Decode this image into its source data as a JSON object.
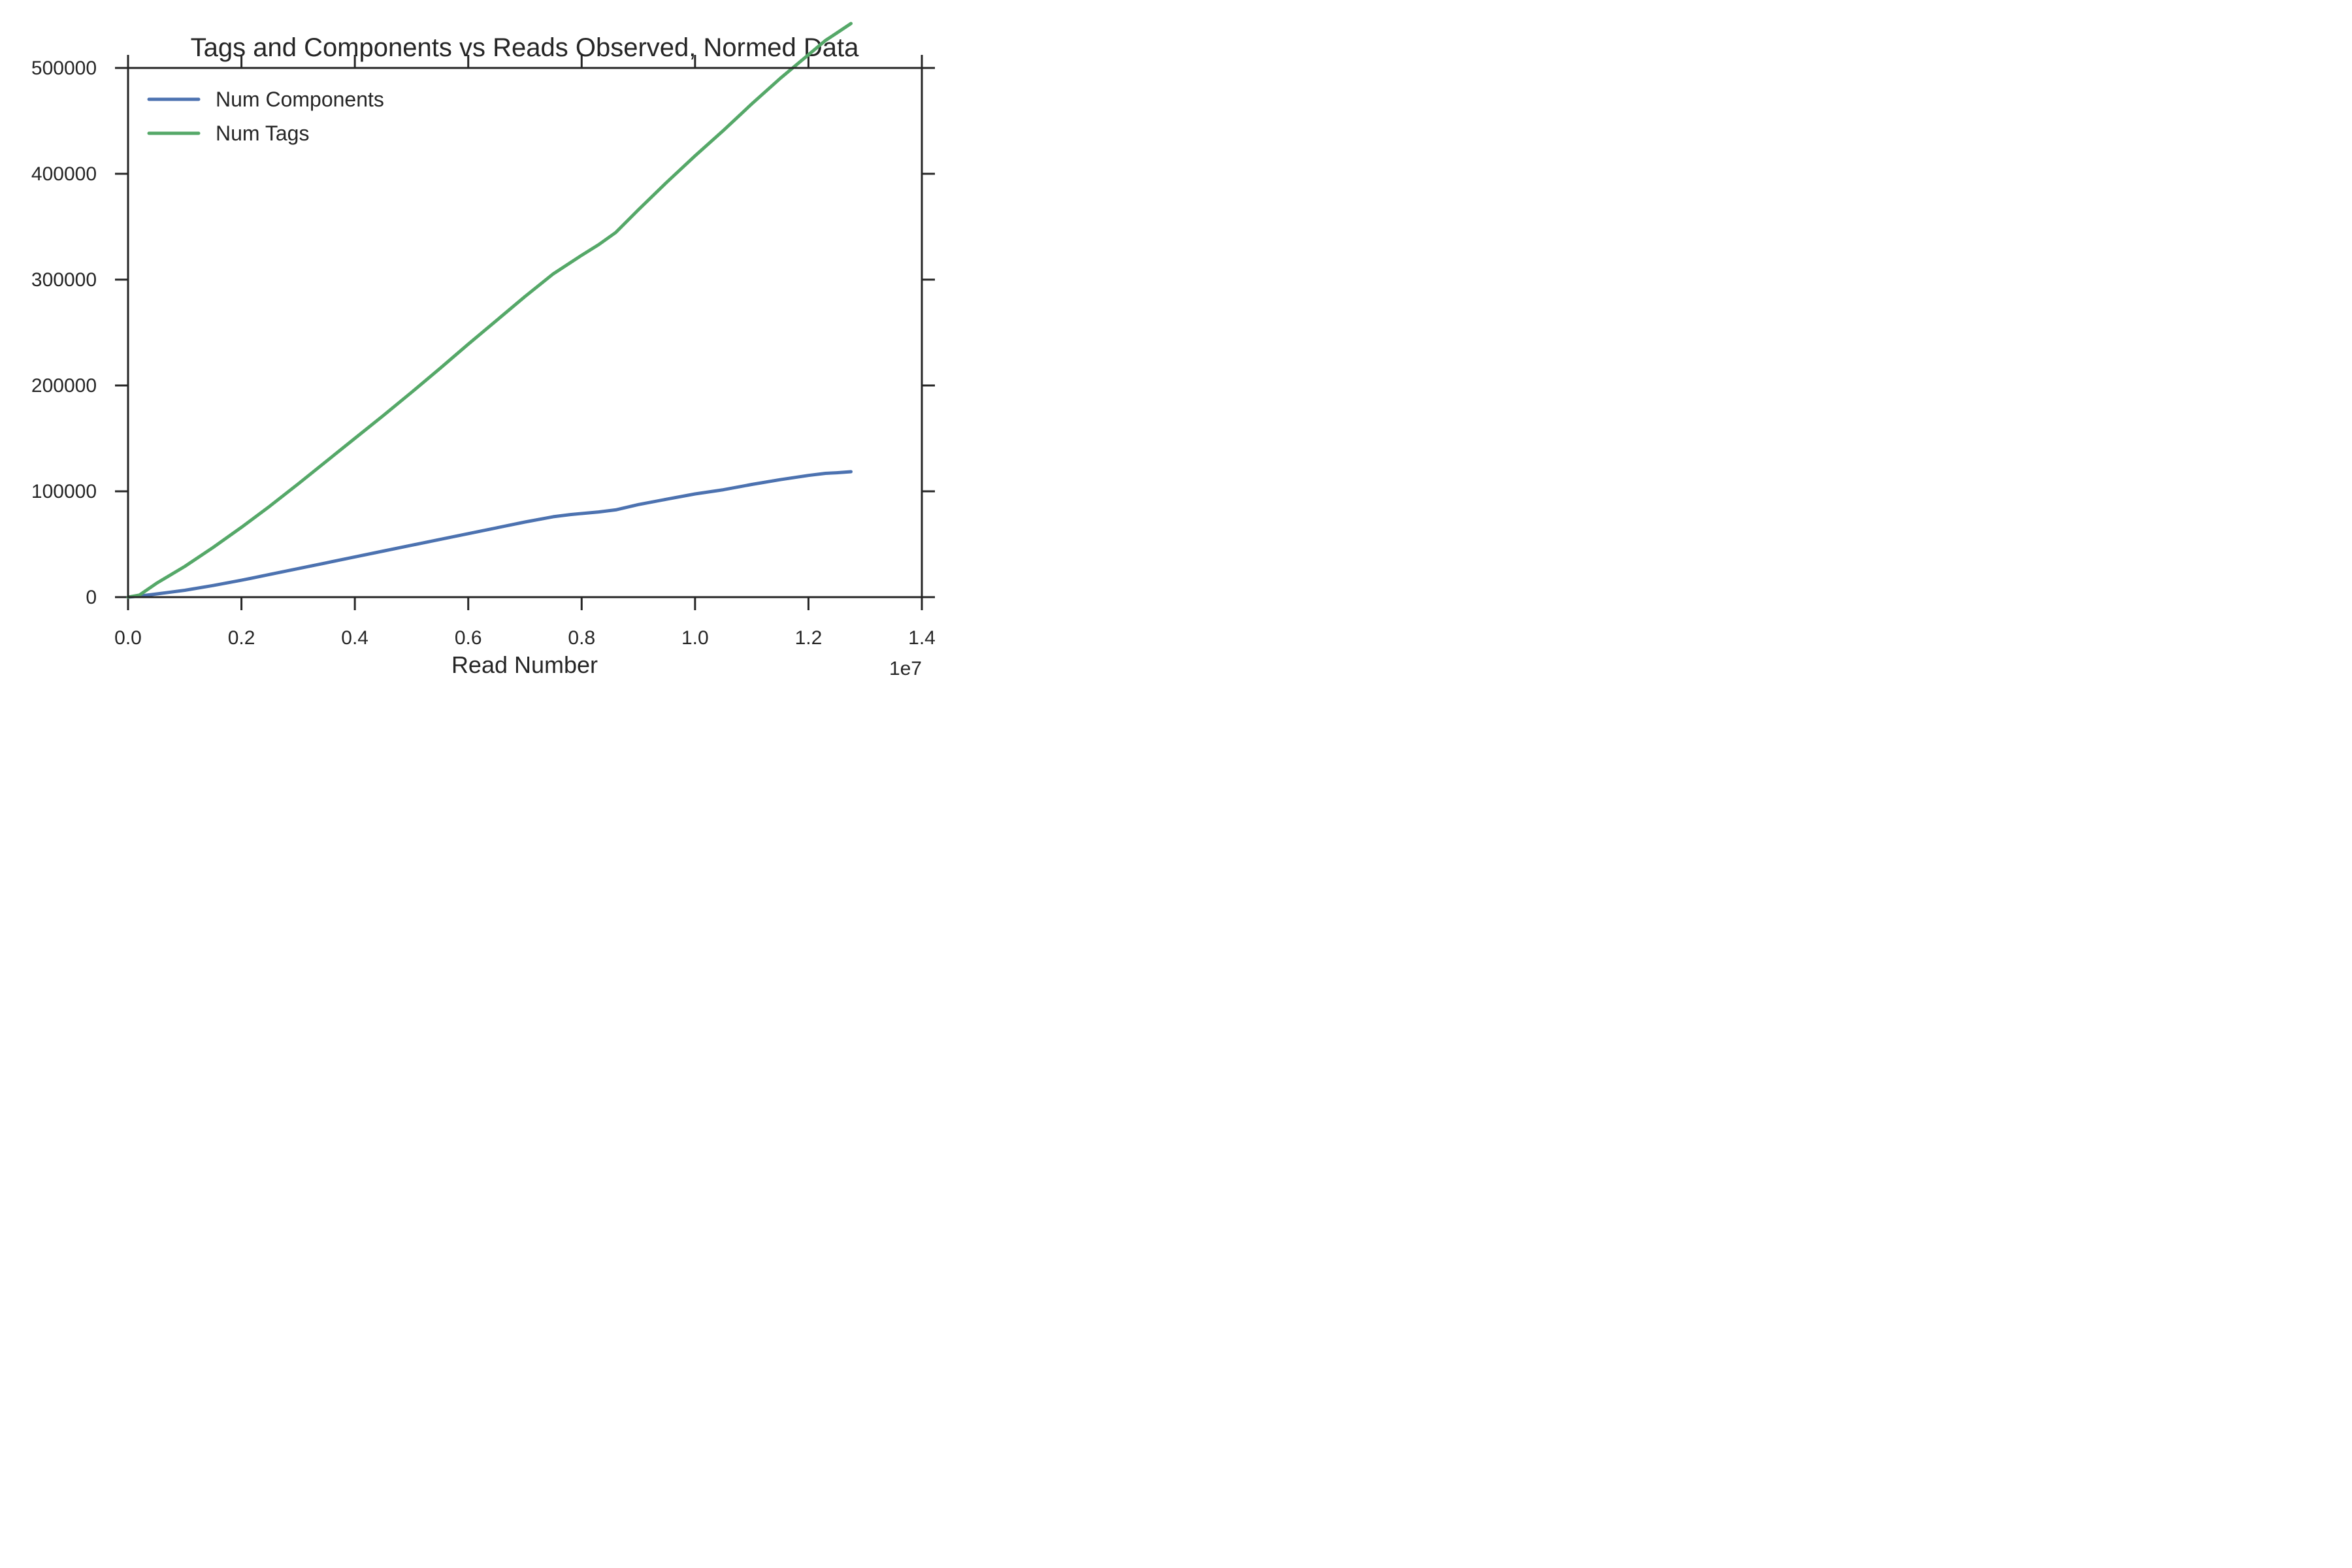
{
  "chart_data": {
    "type": "line",
    "title": "Tags and Components vs Reads Observed, Normed Data",
    "xlabel": "Read Number",
    "ylabel": "",
    "x_offset_label": "1e7",
    "xlim": [
      0,
      1.4
    ],
    "ylim": [
      0,
      500000
    ],
    "x_ticks": [
      0.0,
      0.2,
      0.4,
      0.6,
      0.8,
      1.0,
      1.2,
      1.4
    ],
    "x_tick_labels": [
      "0.0",
      "0.2",
      "0.4",
      "0.6",
      "0.8",
      "1.0",
      "1.2",
      "1.4"
    ],
    "y_ticks": [
      0,
      100000,
      200000,
      300000,
      400000,
      500000
    ],
    "y_tick_labels": [
      "0",
      "100000",
      "200000",
      "300000",
      "400000",
      "500000"
    ],
    "grid": false,
    "legend_position": "top-left",
    "series": [
      {
        "name": "Num Components",
        "color": "#4c72b0",
        "x": [
          0.0,
          0.02,
          0.05,
          0.1,
          0.15,
          0.2,
          0.25,
          0.3,
          0.35,
          0.4,
          0.45,
          0.5,
          0.55,
          0.6,
          0.65,
          0.7,
          0.75,
          0.78,
          0.8,
          0.83,
          0.86,
          0.9,
          0.95,
          1.0,
          1.05,
          1.1,
          1.15,
          1.2,
          1.23,
          1.25,
          1.275
        ],
        "y": [
          0,
          1000,
          3000,
          6500,
          11000,
          16000,
          21500,
          27000,
          32500,
          38000,
          43500,
          49000,
          54500,
          60000,
          65500,
          71000,
          76000,
          78000,
          79000,
          80500,
          82500,
          87500,
          92500,
          97500,
          101500,
          106500,
          111000,
          115000,
          117000,
          117500,
          118500
        ]
      },
      {
        "name": "Num Tags",
        "color": "#55a868",
        "x": [
          0.0,
          0.02,
          0.05,
          0.1,
          0.15,
          0.2,
          0.25,
          0.3,
          0.35,
          0.4,
          0.45,
          0.5,
          0.55,
          0.6,
          0.65,
          0.7,
          0.75,
          0.78,
          0.8,
          0.83,
          0.86,
          0.9,
          0.95,
          1.0,
          1.05,
          1.1,
          1.15,
          1.2,
          1.23,
          1.25,
          1.275
        ],
        "y": [
          0,
          2000,
          13000,
          29000,
          47000,
          66000,
          86000,
          107000,
          128500,
          150000,
          171500,
          193500,
          216000,
          239000,
          261500,
          284000,
          305500,
          316000,
          323000,
          333000,
          344500,
          366000,
          392000,
          417000,
          441000,
          466000,
          490000,
          512500,
          526000,
          533000,
          542000
        ]
      }
    ]
  }
}
